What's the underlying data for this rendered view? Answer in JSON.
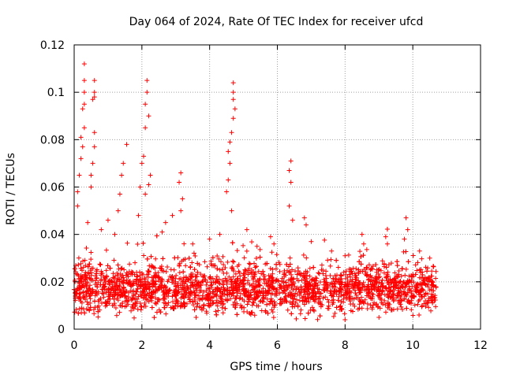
{
  "chart_data": {
    "type": "scatter",
    "title": "Day 064 of 2024, Rate Of TEC Index for receiver ufcd",
    "xlabel": "GPS time / hours",
    "ylabel": "ROTI / TECUs",
    "xlim": [
      0,
      12
    ],
    "ylim": [
      0,
      0.12
    ],
    "xticks": [
      "0",
      "2",
      "4",
      "6",
      "8",
      "10",
      "12"
    ],
    "yticks": [
      "0",
      "0.02",
      "0.04",
      "0.06",
      "0.08",
      "0.1",
      "0.12"
    ],
    "grid": true,
    "marker": "+",
    "color": "#ff0000",
    "series": [
      {
        "name": "ROTI",
        "x_range": [
          0,
          10.7
        ],
        "baseline_mean": 0.017,
        "baseline_spread": 0.008,
        "points": [
          [
            0.3,
            0.112
          ],
          [
            0.3,
            0.105
          ],
          [
            0.3,
            0.1
          ],
          [
            0.25,
            0.093
          ],
          [
            0.3,
            0.095
          ],
          [
            0.3,
            0.085
          ],
          [
            0.25,
            0.077
          ],
          [
            0.2,
            0.081
          ],
          [
            0.2,
            0.072
          ],
          [
            0.15,
            0.065
          ],
          [
            0.1,
            0.058
          ],
          [
            0.1,
            0.052
          ],
          [
            0.6,
            0.105
          ],
          [
            0.6,
            0.1
          ],
          [
            0.6,
            0.098
          ],
          [
            0.55,
            0.097
          ],
          [
            0.6,
            0.083
          ],
          [
            0.6,
            0.077
          ],
          [
            0.55,
            0.07
          ],
          [
            0.5,
            0.065
          ],
          [
            0.5,
            0.06
          ],
          [
            1.55,
            0.078
          ],
          [
            1.45,
            0.07
          ],
          [
            1.4,
            0.065
          ],
          [
            1.35,
            0.057
          ],
          [
            1.3,
            0.05
          ],
          [
            2.15,
            0.105
          ],
          [
            2.15,
            0.1
          ],
          [
            2.1,
            0.095
          ],
          [
            2.2,
            0.09
          ],
          [
            2.1,
            0.085
          ],
          [
            2.05,
            0.073
          ],
          [
            2.0,
            0.07
          ],
          [
            2.25,
            0.065
          ],
          [
            2.2,
            0.061
          ],
          [
            1.95,
            0.06
          ],
          [
            2.1,
            0.057
          ],
          [
            1.9,
            0.048
          ],
          [
            3.15,
            0.066
          ],
          [
            3.1,
            0.062
          ],
          [
            3.2,
            0.055
          ],
          [
            3.15,
            0.05
          ],
          [
            2.9,
            0.048
          ],
          [
            4.7,
            0.104
          ],
          [
            4.7,
            0.1
          ],
          [
            4.7,
            0.097
          ],
          [
            4.75,
            0.093
          ],
          [
            4.7,
            0.089
          ],
          [
            4.65,
            0.083
          ],
          [
            4.6,
            0.079
          ],
          [
            4.55,
            0.075
          ],
          [
            4.6,
            0.07
          ],
          [
            4.55,
            0.063
          ],
          [
            4.5,
            0.058
          ],
          [
            4.65,
            0.05
          ],
          [
            6.4,
            0.071
          ],
          [
            6.35,
            0.067
          ],
          [
            6.4,
            0.062
          ],
          [
            6.35,
            0.052
          ],
          [
            6.45,
            0.046
          ],
          [
            6.8,
            0.047
          ],
          [
            6.85,
            0.044
          ],
          [
            7.0,
            0.037
          ],
          [
            8.5,
            0.04
          ],
          [
            8.55,
            0.036
          ],
          [
            9.2,
            0.039
          ],
          [
            9.25,
            0.036
          ],
          [
            9.8,
            0.047
          ],
          [
            9.85,
            0.042
          ],
          [
            9.75,
            0.038
          ],
          [
            5.8,
            0.039
          ],
          [
            5.9,
            0.036
          ],
          [
            0.4,
            0.045
          ],
          [
            0.8,
            0.042
          ],
          [
            1.0,
            0.046
          ],
          [
            1.2,
            0.04
          ],
          [
            2.6,
            0.041
          ],
          [
            2.7,
            0.045
          ],
          [
            3.5,
            0.036
          ],
          [
            4.0,
            0.038
          ],
          [
            4.3,
            0.04
          ],
          [
            5.1,
            0.042
          ],
          [
            5.4,
            0.035
          ],
          [
            7.6,
            0.033
          ],
          [
            8.0,
            0.031
          ],
          [
            10.2,
            0.033
          ],
          [
            10.5,
            0.03
          ],
          [
            3.6,
            0.005
          ],
          [
            8.0,
            0.004
          ],
          [
            9.0,
            0.005
          ]
        ]
      }
    ]
  }
}
